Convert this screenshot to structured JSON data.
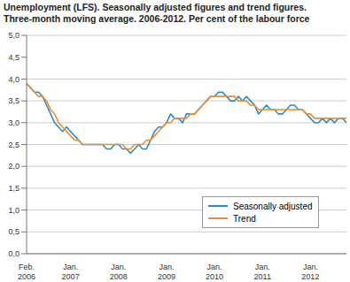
{
  "chart_data": {
    "type": "line",
    "title": [
      "Unemployment (LFS). Seasonally adjusted figures and trend figures.",
      "Three-month moving average. 2006-2012. Per cent of the labour force"
    ],
    "categories": [
      "Feb. 2006",
      null,
      null,
      null,
      null,
      null,
      null,
      null,
      null,
      null,
      null,
      "Jan. 2007",
      null,
      null,
      null,
      null,
      null,
      null,
      null,
      null,
      null,
      null,
      null,
      "Jan. 2008",
      null,
      null,
      null,
      null,
      null,
      null,
      null,
      null,
      null,
      null,
      null,
      "Jan. 2009",
      null,
      null,
      null,
      null,
      null,
      null,
      null,
      null,
      null,
      null,
      null,
      "Jan. 2010",
      null,
      null,
      null,
      null,
      null,
      null,
      null,
      null,
      null,
      null,
      null,
      "Jan. 2011",
      null,
      null,
      null,
      null,
      null,
      null,
      null,
      null,
      null,
      null,
      null,
      "Jan. 2012",
      null,
      null,
      null,
      null,
      null,
      null,
      null,
      null,
      null
    ],
    "series": [
      {
        "name": "Seasonally adjusted",
        "color": "#2e8bc9",
        "values": [
          3.9,
          3.8,
          3.7,
          3.7,
          3.6,
          3.4,
          3.2,
          3.0,
          2.9,
          2.8,
          2.9,
          2.8,
          2.7,
          2.6,
          2.5,
          2.5,
          2.5,
          2.5,
          2.5,
          2.5,
          2.4,
          2.4,
          2.5,
          2.5,
          2.4,
          2.4,
          2.3,
          2.4,
          2.5,
          2.4,
          2.4,
          2.6,
          2.8,
          2.9,
          2.9,
          3.0,
          3.2,
          3.1,
          3.1,
          3.0,
          3.2,
          3.2,
          3.2,
          3.3,
          3.4,
          3.5,
          3.6,
          3.6,
          3.7,
          3.7,
          3.6,
          3.5,
          3.5,
          3.6,
          3.5,
          3.6,
          3.5,
          3.4,
          3.2,
          3.3,
          3.4,
          3.3,
          3.3,
          3.2,
          3.2,
          3.3,
          3.4,
          3.4,
          3.3,
          3.3,
          3.2,
          3.1,
          3.0,
          3.0,
          3.1,
          3.0,
          3.1,
          3.0,
          3.1,
          3.1,
          3.0
        ]
      },
      {
        "name": "Trend",
        "color": "#f28c28",
        "values": [
          3.9,
          3.8,
          3.7,
          3.6,
          3.6,
          3.5,
          3.3,
          3.2,
          3.0,
          2.9,
          2.8,
          2.7,
          2.6,
          2.6,
          2.5,
          2.5,
          2.5,
          2.5,
          2.5,
          2.5,
          2.5,
          2.5,
          2.5,
          2.5,
          2.5,
          2.4,
          2.4,
          2.5,
          2.5,
          2.5,
          2.6,
          2.6,
          2.7,
          2.8,
          2.9,
          3.0,
          3.0,
          3.1,
          3.1,
          3.1,
          3.1,
          3.2,
          3.2,
          3.3,
          3.4,
          3.5,
          3.6,
          3.6,
          3.6,
          3.6,
          3.6,
          3.6,
          3.6,
          3.5,
          3.5,
          3.5,
          3.4,
          3.4,
          3.3,
          3.3,
          3.3,
          3.3,
          3.3,
          3.3,
          3.3,
          3.3,
          3.3,
          3.3,
          3.3,
          3.3,
          3.2,
          3.2,
          3.1,
          3.1,
          3.1,
          3.1,
          3.1,
          3.1,
          3.1,
          3.1,
          3.1
        ]
      }
    ],
    "ylim": [
      0,
      5
    ],
    "yticks": [
      {
        "value": 0,
        "label": "0,0"
      },
      {
        "value": 0.5,
        "label": "0,5"
      },
      {
        "value": 1,
        "label": "1,0"
      },
      {
        "value": 1.5,
        "label": "1,5"
      },
      {
        "value": 2,
        "label": "2,0"
      },
      {
        "value": 2.5,
        "label": "2,5"
      },
      {
        "value": 3,
        "label": "3,0"
      },
      {
        "value": 3.5,
        "label": "3,5"
      },
      {
        "value": 4,
        "label": "4,0"
      },
      {
        "value": 4.5,
        "label": "4,5"
      },
      {
        "value": 5,
        "label": "5,0"
      }
    ],
    "grid": true,
    "legend": "lower right"
  }
}
